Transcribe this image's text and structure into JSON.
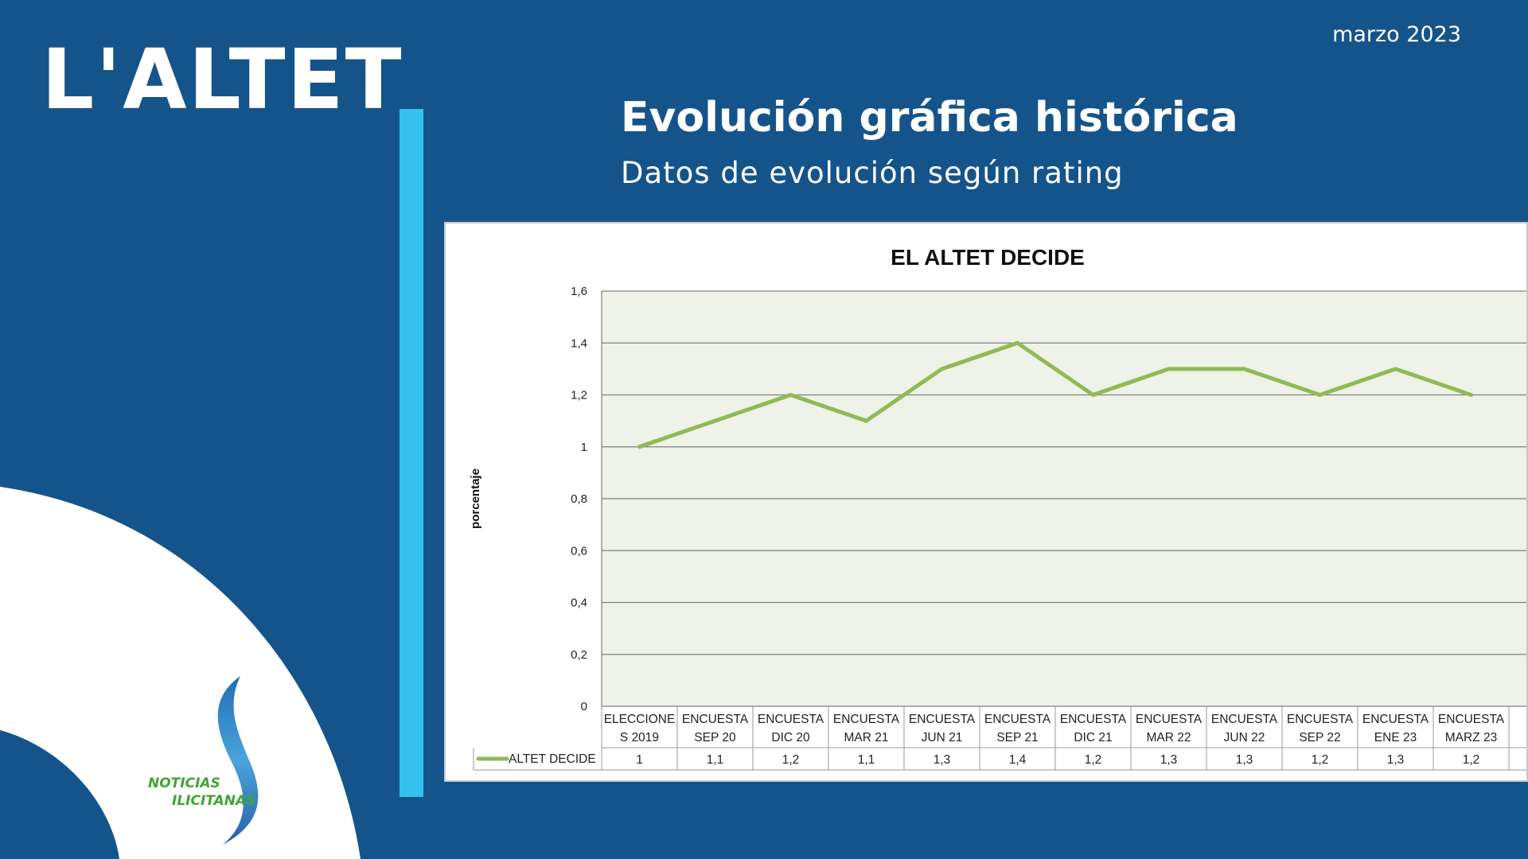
{
  "brand": "L'ALTET",
  "date": "marzo 2023",
  "title": "Evolución gráfica histórica",
  "subtitle": "Datos de evolución según rating",
  "logo": {
    "line1": "NOTICIAS",
    "line2": "ILICITANAS"
  },
  "colors": {
    "background": "#15548a",
    "accent": "#36c2ee",
    "series": "#92b955",
    "plot_bg": "#eef2e8"
  },
  "chart_data": {
    "type": "line",
    "title": "EL ALTET DECIDE",
    "ylabel": "porcentaje",
    "xlabel": "",
    "ylim": [
      0,
      1.6
    ],
    "yticks": [
      "0",
      "0,2",
      "0,4",
      "0,6",
      "0,8",
      "1",
      "1,2",
      "1,4",
      "1,6"
    ],
    "grid": true,
    "legend": "data-table",
    "categories": [
      [
        "ELECCIONE",
        "S 2019"
      ],
      [
        "ENCUESTA",
        "SEP 20"
      ],
      [
        "ENCUESTA",
        "DIC 20"
      ],
      [
        "ENCUESTA",
        "MAR 21"
      ],
      [
        "ENCUESTA",
        "JUN 21"
      ],
      [
        "ENCUESTA",
        "SEP 21"
      ],
      [
        "ENCUESTA",
        "DIC 21"
      ],
      [
        "ENCUESTA",
        "MAR 22"
      ],
      [
        "ENCUESTA",
        "JUN 22"
      ],
      [
        "ENCUESTA",
        "SEP 22"
      ],
      [
        "ENCUESTA",
        "ENE 23"
      ],
      [
        "ENCUESTA",
        "MARZ 23"
      ]
    ],
    "series": [
      {
        "name": "ALTET DECIDE",
        "values": [
          1,
          1.1,
          1.2,
          1.1,
          1.3,
          1.4,
          1.2,
          1.3,
          1.3,
          1.2,
          1.3,
          1.2
        ],
        "labels": [
          "1",
          "1,1",
          "1,2",
          "1,1",
          "1,3",
          "1,4",
          "1,2",
          "1,3",
          "1,3",
          "1,2",
          "1,3",
          "1,2"
        ]
      }
    ]
  }
}
